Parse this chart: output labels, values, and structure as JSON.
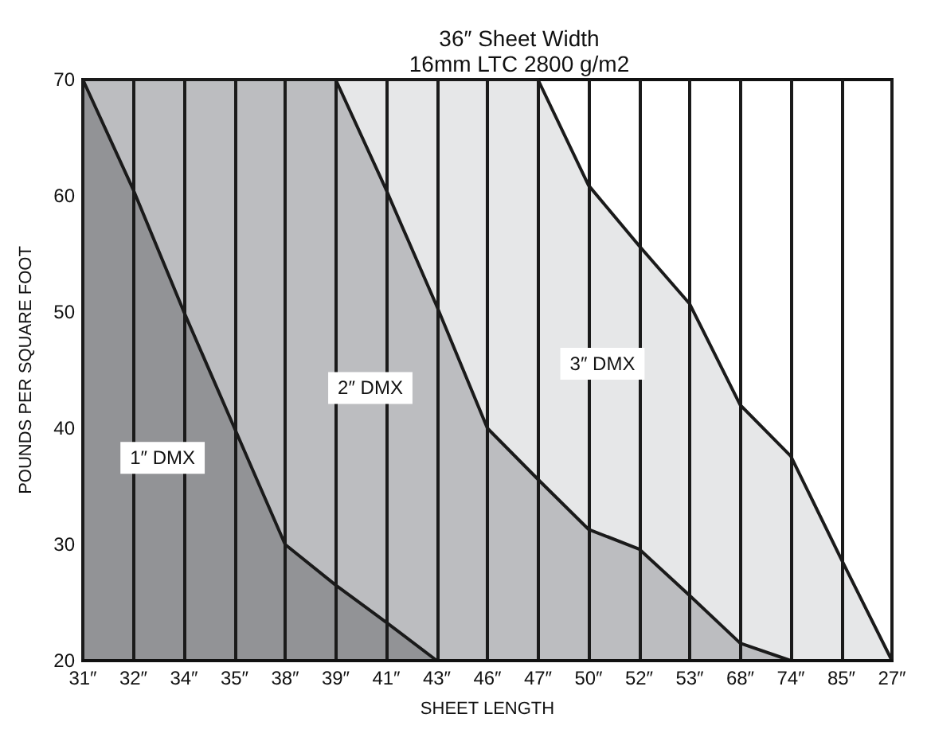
{
  "chart_data": {
    "type": "area",
    "title": "36″ Sheet Width",
    "subtitle": "16mm LTC 2800 g/m2",
    "xlabel": "SHEET LENGTH",
    "ylabel": "POUNDS PER SQUARE FOOT",
    "categories": [
      "31″",
      "32″",
      "34″",
      "35″",
      "38″",
      "39″",
      "41″",
      "43″",
      "46″",
      "47″",
      "50″",
      "52″",
      "53″",
      "68″",
      "74″",
      "85″",
      "27″"
    ],
    "series": [
      {
        "name": "3″ DMX",
        "color": "#e6e7e8",
        "values": [
          70,
          70,
          70,
          70,
          70,
          70,
          70,
          70,
          70,
          70,
          60.9,
          55.7,
          50.7,
          42,
          37.6,
          28.7,
          20
        ]
      },
      {
        "name": "2″ DMX",
        "color": "#bcbdc0",
        "values": [
          70,
          70,
          70,
          70,
          70,
          70,
          60.5,
          50.5,
          40,
          35.6,
          31.3,
          29.6,
          25.6,
          21.5,
          20,
          null,
          null
        ]
      },
      {
        "name": "1″ DMX",
        "color": "#929396",
        "values": [
          70,
          60.5,
          50,
          40,
          30,
          26.5,
          23.3,
          20,
          null,
          null,
          null,
          null,
          null,
          null,
          null,
          null,
          null
        ]
      }
    ],
    "ylim": [
      20,
      70
    ],
    "yticks": [
      20,
      30,
      40,
      50,
      60,
      70
    ],
    "grid": "x"
  }
}
